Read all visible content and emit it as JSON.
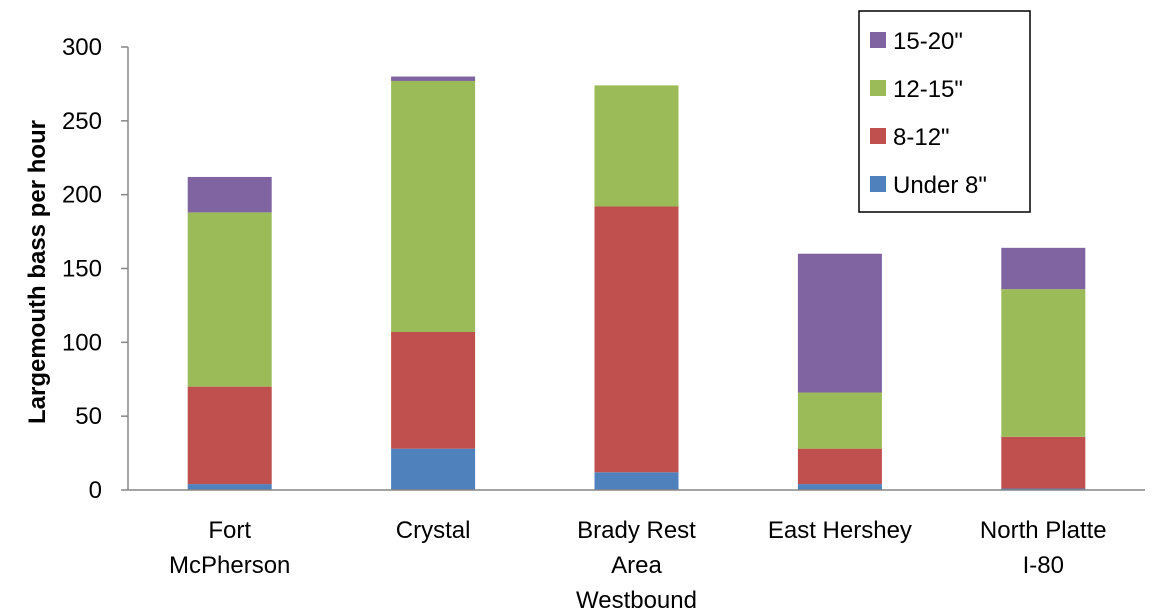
{
  "chart_data": {
    "type": "bar",
    "stacked": true,
    "categories": [
      [
        "Fort",
        "McPherson"
      ],
      [
        "Crystal"
      ],
      [
        "Brady Rest",
        "Area",
        "Westbound"
      ],
      [
        "East Hershey"
      ],
      [
        "North Platte",
        "I-80"
      ]
    ],
    "series": [
      {
        "name": "Under 8\"",
        "color": "#4F81BD",
        "values": [
          4,
          28,
          12,
          4,
          1
        ]
      },
      {
        "name": "8-12\"",
        "color": "#C0504D",
        "values": [
          66,
          79,
          180,
          24,
          35
        ]
      },
      {
        "name": "12-15\"",
        "color": "#9BBB59",
        "values": [
          118,
          170,
          82,
          38,
          100
        ]
      },
      {
        "name": "15-20\"",
        "color": "#8064A2",
        "values": [
          24,
          3,
          0,
          94,
          28
        ]
      }
    ],
    "ylabel": "Largemouth bass per hour",
    "xlabel": "",
    "ylim": [
      0,
      300
    ],
    "yticks": [
      0,
      50,
      100,
      150,
      200,
      250,
      300
    ],
    "grid": false,
    "legend": {
      "placement": "top-right",
      "order": [
        "15-20\"",
        "12-15\"",
        "8-12\"",
        "Under 8\""
      ]
    }
  }
}
